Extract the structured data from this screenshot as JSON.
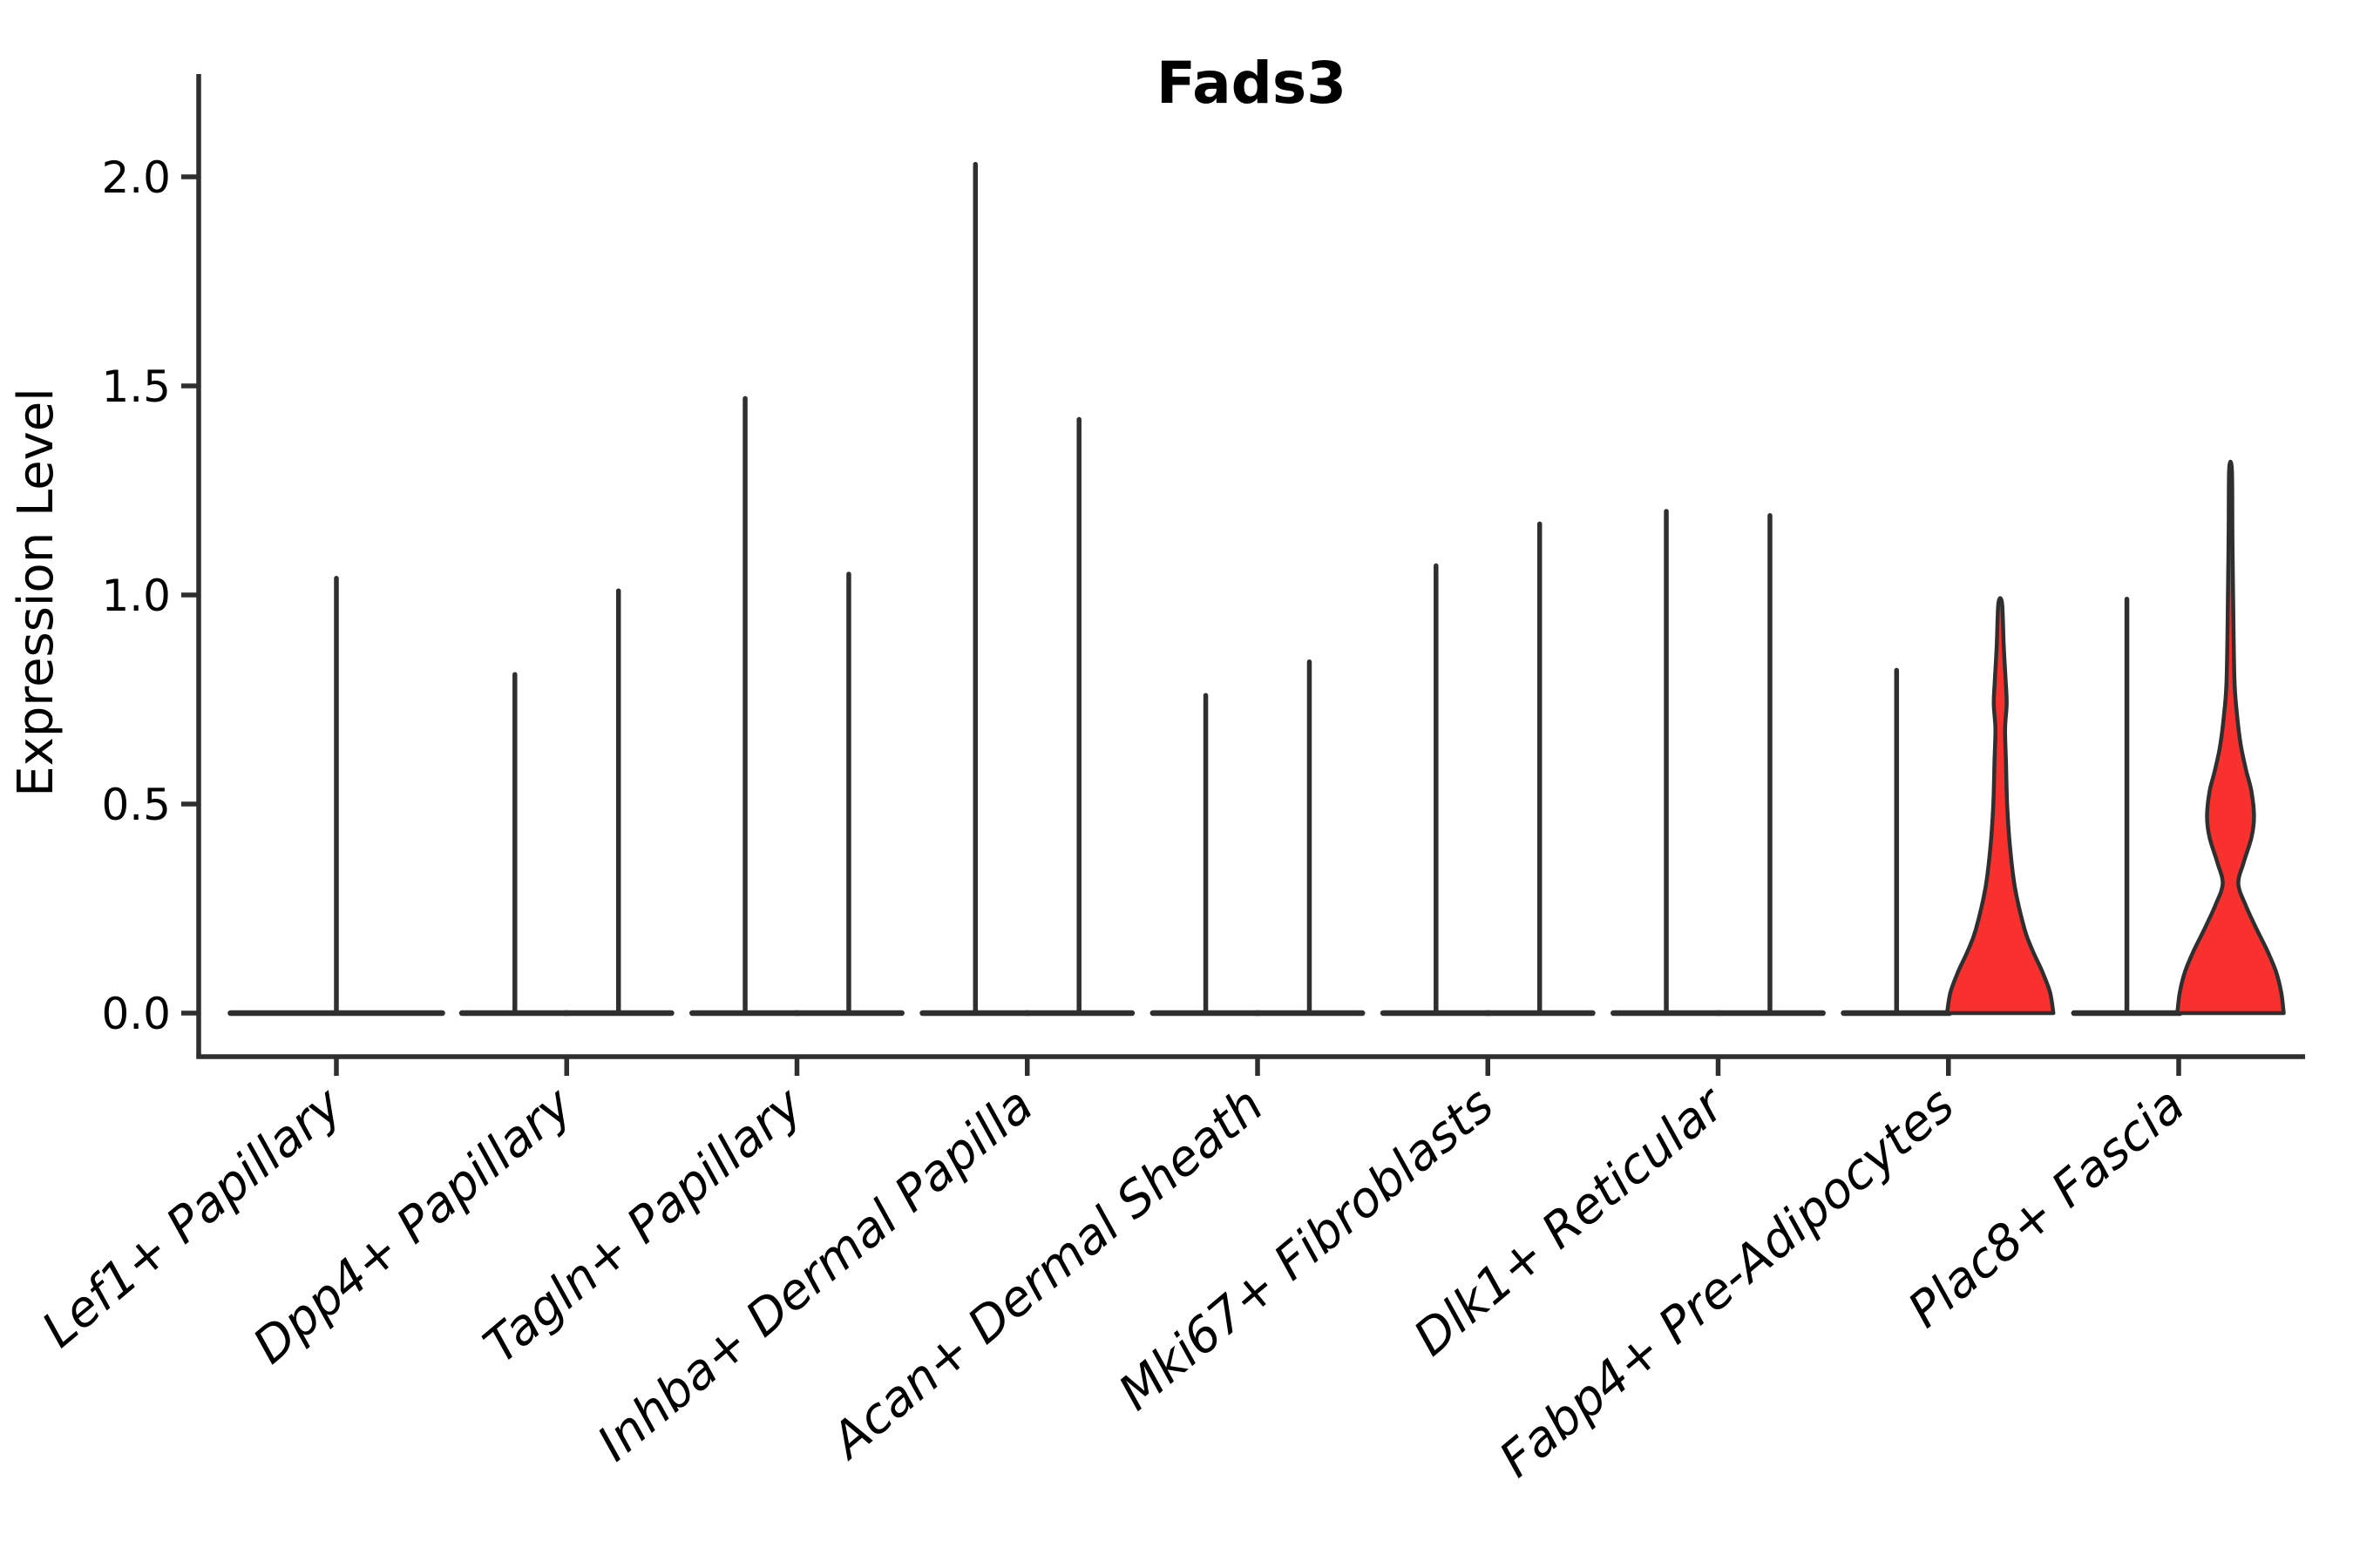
{
  "chart_data": {
    "type": "violin",
    "title": "Fads3",
    "ylabel": "Expression Level",
    "xlabel": "",
    "ylim": [
      0.0,
      2.0
    ],
    "grid": false,
    "legend": "none",
    "line_color": "#2f2f2f",
    "highlight_fill": "#f8312f",
    "yticks": [
      "0.0",
      "0.5",
      "1.0",
      "1.5",
      "2.0"
    ],
    "ytick_values": [
      0.0,
      0.5,
      1.0,
      1.5,
      2.0
    ],
    "categories": [
      "Lef1+ Papillary",
      "Dpp4+ Papillary",
      "Tagln+ Papillary",
      "Inhba+ Dermal Papilla",
      "Acan+ Dermal Sheath",
      "Mki67+ Fibroblasts",
      "Dlk1+ Reticular",
      "Fabp4+ Pre-Adipocytes",
      "Plac8+ Fascia"
    ],
    "series": [
      {
        "category": "Lef1+ Papillary",
        "violins": [
          {
            "offset": 0.0,
            "span": 0.92,
            "peak": 1.04,
            "fill": "none"
          }
        ]
      },
      {
        "category": "Dpp4+ Papillary",
        "violins": [
          {
            "offset": -0.225,
            "span": 0.46,
            "peak": 0.81,
            "fill": "none"
          },
          {
            "offset": 0.225,
            "span": 0.46,
            "peak": 1.01,
            "fill": "none"
          }
        ]
      },
      {
        "category": "Tagln+ Papillary",
        "violins": [
          {
            "offset": -0.225,
            "span": 0.46,
            "peak": 1.47,
            "fill": "none"
          },
          {
            "offset": 0.225,
            "span": 0.46,
            "peak": 1.05,
            "fill": "none"
          }
        ]
      },
      {
        "category": "Inhba+ Dermal Papilla",
        "violins": [
          {
            "offset": -0.225,
            "span": 0.46,
            "peak": 2.03,
            "fill": "none"
          },
          {
            "offset": 0.225,
            "span": 0.46,
            "peak": 1.42,
            "fill": "none"
          }
        ]
      },
      {
        "category": "Acan+ Dermal Sheath",
        "violins": [
          {
            "offset": -0.225,
            "span": 0.46,
            "peak": 0.76,
            "fill": "none"
          },
          {
            "offset": 0.225,
            "span": 0.46,
            "peak": 0.84,
            "fill": "none"
          }
        ]
      },
      {
        "category": "Mki67+ Fibroblasts",
        "violins": [
          {
            "offset": -0.225,
            "span": 0.46,
            "peak": 1.07,
            "fill": "none"
          },
          {
            "offset": 0.225,
            "span": 0.46,
            "peak": 1.17,
            "fill": "none"
          }
        ]
      },
      {
        "category": "Dlk1+ Reticular",
        "violins": [
          {
            "offset": -0.225,
            "span": 0.46,
            "peak": 1.2,
            "fill": "none"
          },
          {
            "offset": 0.225,
            "span": 0.46,
            "peak": 1.19,
            "fill": "none"
          }
        ]
      },
      {
        "category": "Fabp4+ Pre-Adipocytes",
        "violins": [
          {
            "offset": -0.225,
            "span": 0.46,
            "peak": 0.82,
            "fill": "none"
          },
          {
            "offset": 0.225,
            "span": 0.46,
            "peak": 0.98,
            "fill": "#f8312f",
            "profile": [
              [
                0.0,
                0.231
              ],
              [
                0.05,
                0.216
              ],
              [
                0.1,
                0.182
              ],
              [
                0.15,
                0.14
              ],
              [
                0.2,
                0.106
              ],
              [
                0.3,
                0.064
              ],
              [
                0.4,
                0.042
              ],
              [
                0.5,
                0.03
              ],
              [
                0.6,
                0.025
              ],
              [
                0.68,
                0.021
              ],
              [
                0.74,
                0.028
              ],
              [
                0.8,
                0.023
              ],
              [
                0.88,
                0.015
              ],
              [
                0.98,
                0.008
              ]
            ]
          }
        ]
      },
      {
        "category": "Plac8+ Fascia",
        "violins": [
          {
            "offset": -0.225,
            "span": 0.46,
            "peak": 0.99,
            "fill": "none"
          },
          {
            "offset": 0.225,
            "span": 0.46,
            "peak": 1.3,
            "fill": "#f8312f",
            "profile": [
              [
                0.0,
                0.231
              ],
              [
                0.05,
                0.22
              ],
              [
                0.1,
                0.197
              ],
              [
                0.15,
                0.159
              ],
              [
                0.2,
                0.114
              ],
              [
                0.26,
                0.064
              ],
              [
                0.31,
                0.034
              ],
              [
                0.36,
                0.057
              ],
              [
                0.42,
                0.091
              ],
              [
                0.47,
                0.102
              ],
              [
                0.53,
                0.091
              ],
              [
                0.58,
                0.068
              ],
              [
                0.64,
                0.045
              ],
              [
                0.72,
                0.027
              ],
              [
                0.8,
                0.017
              ],
              [
                1.0,
                0.011
              ],
              [
                1.15,
                0.008
              ],
              [
                1.3,
                0.006
              ]
            ]
          }
        ]
      }
    ]
  }
}
